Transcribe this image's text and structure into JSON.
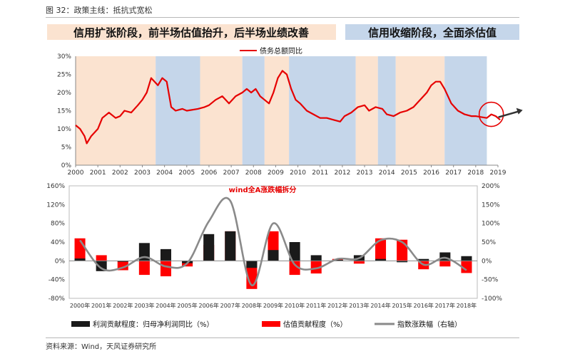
{
  "figure_title": "图 32：政策主线：抵抗式宽松",
  "source_note": "资料来源：Wind，天风证券研究所",
  "colors": {
    "expansion": "#fbe3d0",
    "contraction": "#c5d6ea",
    "red": "#ff0000",
    "black": "#1a1a1a",
    "gray": "#8a8a8a",
    "arrow": "#333333"
  },
  "chart_data": [
    {
      "type": "line",
      "legend": [
        {
          "name": "债务总额同比",
          "color": "#e60000"
        }
      ],
      "banners": [
        {
          "label": "信用扩张阶段，前半场估值抬升，后半场业绩改善",
          "color": "#fbe3d0"
        },
        {
          "label": "信用收缩阶段，全面杀估值",
          "color": "#c5d6ea"
        }
      ],
      "x_ticks": [
        "2000",
        "2001",
        "2002",
        "2003",
        "2004",
        "2005",
        "2006",
        "2007",
        "2008",
        "2009",
        "2010",
        "2011",
        "2012",
        "2013",
        "2014",
        "2015",
        "2016",
        "2017",
        "2018",
        "2019"
      ],
      "y_ticks": [
        "0%",
        "5%",
        "10%",
        "15%",
        "20%",
        "25%",
        "30%"
      ],
      "ylim": [
        0,
        30
      ],
      "xlim": [
        2000,
        2019
      ],
      "shading": [
        {
          "from": 2000,
          "to": 2003.6,
          "phase": "expansion"
        },
        {
          "from": 2003.6,
          "to": 2005.6,
          "phase": "contraction"
        },
        {
          "from": 2005.6,
          "to": 2007.5,
          "phase": "expansion"
        },
        {
          "from": 2007.5,
          "to": 2008.5,
          "phase": "contraction"
        },
        {
          "from": 2008.5,
          "to": 2009.6,
          "phase": "expansion"
        },
        {
          "from": 2009.6,
          "to": 2012.6,
          "phase": "contraction"
        },
        {
          "from": 2012.6,
          "to": 2013.6,
          "phase": "expansion"
        },
        {
          "from": 2013.6,
          "to": 2014.4,
          "phase": "contraction"
        },
        {
          "from": 2014.4,
          "to": 2016.6,
          "phase": "expansion"
        },
        {
          "from": 2016.6,
          "to": 2018.5,
          "phase": "contraction"
        }
      ],
      "series": [
        {
          "name": "债务总额同比",
          "x": [
            2000,
            2000.2,
            2000.4,
            2000.5,
            2000.7,
            2001,
            2001.2,
            2001.5,
            2001.8,
            2002,
            2002.2,
            2002.5,
            2002.8,
            2003,
            2003.2,
            2003.4,
            2003.7,
            2003.9,
            2004.1,
            2004.3,
            2004.5,
            2004.8,
            2005,
            2005.2,
            2005.5,
            2005.8,
            2006,
            2006.3,
            2006.6,
            2006.9,
            2007.2,
            2007.5,
            2007.7,
            2007.9,
            2008.1,
            2008.3,
            2008.5,
            2008.7,
            2008.9,
            2009.1,
            2009.3,
            2009.5,
            2009.7,
            2009.9,
            2010.1,
            2010.4,
            2010.7,
            2011,
            2011.3,
            2011.6,
            2011.9,
            2012.1,
            2012.4,
            2012.7,
            2013,
            2013.2,
            2013.5,
            2013.8,
            2014,
            2014.3,
            2014.6,
            2014.9,
            2015.2,
            2015.5,
            2015.8,
            2016,
            2016.2,
            2016.4,
            2016.6,
            2016.9,
            2017.2,
            2017.5,
            2017.8,
            2018,
            2018.2,
            2018.5,
            2018.7,
            2018.9,
            2019.1
          ],
          "y": [
            11,
            10,
            8,
            6,
            8,
            10,
            13,
            14.5,
            13,
            13.5,
            15,
            14.5,
            16.5,
            18,
            20,
            24,
            22,
            24,
            23,
            16,
            15,
            15.5,
            15,
            15.2,
            15.5,
            16,
            16.5,
            18,
            19,
            17,
            19,
            20,
            21,
            20,
            21,
            19,
            18,
            17,
            20,
            24,
            26,
            25,
            21,
            18,
            17,
            15,
            14,
            13,
            13,
            12.5,
            12,
            13.5,
            14.5,
            16,
            16.5,
            15,
            16,
            15.5,
            14,
            13.5,
            14.5,
            15,
            16,
            18,
            20,
            22,
            23,
            23,
            21,
            17,
            15,
            14,
            13.5,
            13.5,
            13.3,
            13,
            14,
            13.5,
            12.5
          ]
        }
      ]
    },
    {
      "type": "bar",
      "categories": [
        "2000年",
        "2001年",
        "2002年",
        "2003年",
        "2004年",
        "2005年",
        "2006年",
        "2007年",
        "2008年",
        "2009年",
        "2010年",
        "2011年",
        "2012年",
        "2013年",
        "2014年",
        "2015年",
        "2016年",
        "2017年",
        "2018年"
      ],
      "y_left_ticks": [
        "160%",
        "120%",
        "80%",
        "40%",
        "0%",
        "-40%",
        "-80%"
      ],
      "y_right_ticks": [
        "200%",
        "150%",
        "100%",
        "50%",
        "0%",
        "-50%",
        "-100%"
      ],
      "ylim_left": [
        -80,
        160
      ],
      "ylim_right": [
        -100,
        200
      ],
      "annotation": "wind全A涨跌幅拆分",
      "series": [
        {
          "name": "利润贡献程度：归母净利润同比（%）",
          "color": "#1a1a1a",
          "values": [
            5,
            -22,
            -2,
            38,
            25,
            -5,
            57,
            63,
            -15,
            23,
            40,
            12,
            2,
            12,
            4,
            -3,
            4,
            18,
            10
          ]
        },
        {
          "name": "估值贡献程度（%）",
          "color": "#ff0000",
          "values": [
            48,
            12,
            -20,
            -30,
            -33,
            -12,
            34,
            63,
            -60,
            63,
            -30,
            -27,
            4,
            -6,
            48,
            45,
            -18,
            -12,
            -26
          ]
        },
        {
          "name": "指数涨跌幅（右轴）",
          "color": "#8a8a8a",
          "axis": "right",
          "values": [
            55,
            -20,
            -18,
            10,
            -15,
            -6,
            105,
            160,
            -65,
            100,
            -10,
            -20,
            5,
            7,
            55,
            50,
            -10,
            8,
            -25
          ]
        }
      ]
    }
  ]
}
